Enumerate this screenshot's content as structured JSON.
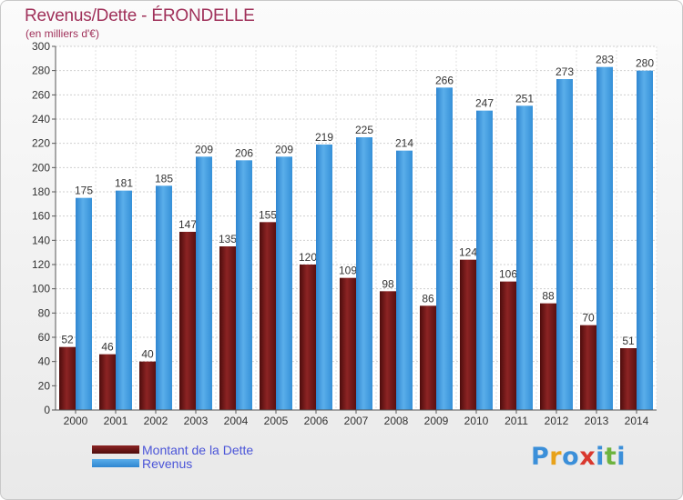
{
  "title": "Revenus/Dette - ÉRONDELLE",
  "subtitle": "(en milliers d'€)",
  "colors": {
    "dette": "#7a1c1c",
    "revenus": "#3d99e2",
    "title": "#a0315a",
    "legend_text": "#4b55d8"
  },
  "legend": {
    "dette_label": "Montant de la Dette",
    "revenus_label": "Revenus"
  },
  "logo": {
    "text": "Proxiti",
    "letter_colors": [
      "#3b8fd9",
      "#e8a21a",
      "#3b8fd9",
      "#d9382e",
      "#3b8fd9",
      "#6db33f",
      "#3b8fd9"
    ]
  },
  "chart_data": {
    "type": "bar",
    "categories": [
      "2000",
      "2001",
      "2002",
      "2003",
      "2004",
      "2005",
      "2006",
      "2007",
      "2008",
      "2009",
      "2010",
      "2011",
      "2012",
      "2013",
      "2014"
    ],
    "series": [
      {
        "name": "Montant de la Dette",
        "values": [
          52,
          46,
          40,
          147,
          135,
          155,
          120,
          109,
          98,
          86,
          124,
          106,
          88,
          70,
          51
        ]
      },
      {
        "name": "Revenus",
        "values": [
          175,
          181,
          185,
          209,
          206,
          209,
          219,
          225,
          214,
          266,
          247,
          251,
          273,
          283,
          280
        ]
      }
    ],
    "ylim": [
      0,
      300
    ],
    "yticks": [
      0,
      20,
      40,
      60,
      80,
      100,
      120,
      140,
      160,
      180,
      200,
      220,
      240,
      260,
      280,
      300
    ],
    "grid": true,
    "legend_position": "bottom-left"
  }
}
